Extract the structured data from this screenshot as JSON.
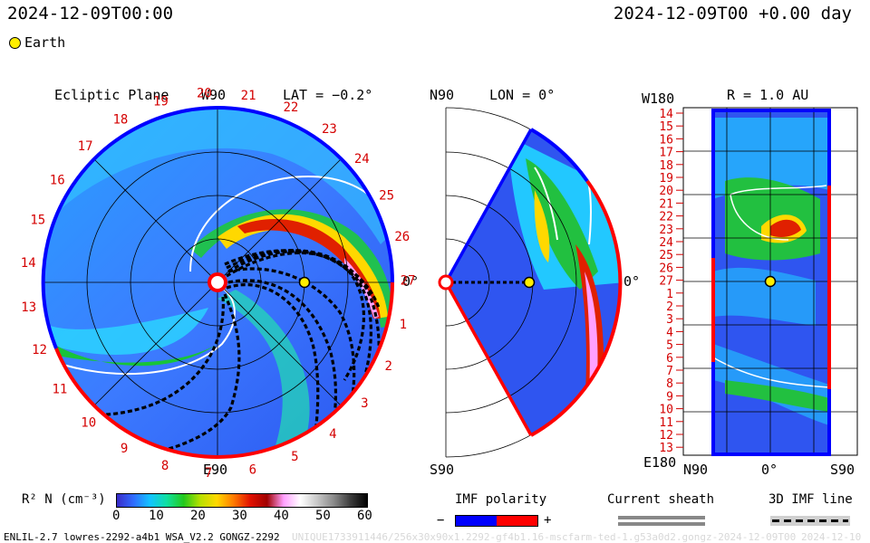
{
  "header": {
    "timestamp_left": "2024-12-09T00:00",
    "timestamp_right": "2024-12-09T00 +0.00 day"
  },
  "legend": {
    "earth_label": "Earth",
    "earth_color": "#ffee00"
  },
  "ecliptic_panel": {
    "title": "Ecliptic Plane",
    "top_label": "W90",
    "lat_label": "LAT = −0.2°",
    "right_label": "0°",
    "bottom_label": "E90",
    "carrington_labels": [
      "20",
      "21",
      "22",
      "23",
      "24",
      "25",
      "26",
      "27",
      "1",
      "2",
      "3",
      "4",
      "5",
      "6",
      "7",
      "8",
      "9",
      "10",
      "11",
      "12",
      "13",
      "14",
      "15",
      "16",
      "17",
      "18",
      "19"
    ]
  },
  "meridional_panel": {
    "top_label": "N90",
    "lon_label": "LON = 0°",
    "right_label": "0°",
    "bottom_label": "S90"
  },
  "radial_panel": {
    "top_left_label": "W180",
    "r_label": "R = 1.0 AU",
    "bottom_left_label": "E180",
    "bottom_labels": [
      "N90",
      "0°",
      "S90"
    ],
    "carrington_labels": [
      "14",
      "15",
      "16",
      "17",
      "18",
      "19",
      "20",
      "21",
      "22",
      "23",
      "24",
      "25",
      "26",
      "27",
      "1",
      "2",
      "3",
      "4",
      "5",
      "6",
      "7",
      "8",
      "9",
      "10",
      "11",
      "12",
      "13"
    ]
  },
  "colorbar": {
    "label": "R² N (cm⁻³)",
    "ticks": [
      "0",
      "10",
      "20",
      "30",
      "40",
      "50",
      "60"
    ],
    "colors": [
      "#3a2cc8",
      "#2f6cff",
      "#12c4ff",
      "#10e0a0",
      "#22c81c",
      "#b8e000",
      "#ffd800",
      "#ff7a00",
      "#e01000",
      "#a00000",
      "#ffa0ff",
      "#ffffff",
      "#c8c8c8",
      "#8a8a8a",
      "#3c3c3c",
      "#000000"
    ]
  },
  "imf_polarity": {
    "label": "IMF polarity",
    "minus": "−",
    "plus": "+",
    "negative_color": "#0000ff",
    "positive_color": "#ff0000"
  },
  "current_sheath": {
    "label": "Current sheath"
  },
  "imf_line": {
    "label": "3D IMF line"
  },
  "footer": {
    "model_info": "ENLIL-2.7 lowres-2292-a4b1 WSA_V2.2 GONGZ-2292",
    "run_info": "UNIQUE1733911446/256x30x90x1.2292-gf4b1.16-mscfarm-ted-1.g53a0d2.gongz-2024-12-09T00",
    "run_date": "2024-12-10"
  }
}
